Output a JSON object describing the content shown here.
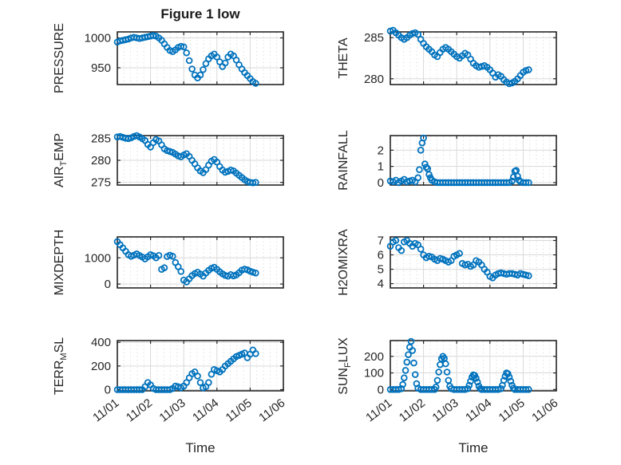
{
  "figure": {
    "title": "Figure 1 low",
    "xlabel": "Time"
  },
  "style": {
    "marker_color": "#0072BD",
    "axis_color": "#262626",
    "grid_color": "#d9d9d9",
    "text_color": "#262626",
    "title_color": "#1a1a1a",
    "background": "#ffffff"
  },
  "x_axis": {
    "tick_labels": [
      "11/01",
      "11/02",
      "11/03",
      "11/04",
      "11/05",
      "11/06"
    ],
    "tick_hours": [
      0,
      24,
      48,
      72,
      96,
      120
    ],
    "range_hours": [
      0,
      120
    ]
  },
  "chart_data": [
    {
      "id": "pressure",
      "type": "scatter",
      "row": 0,
      "col": 0,
      "ylabel_parts": [
        {
          "text": "PRESSURE",
          "sub": false
        }
      ],
      "yticks": [
        950,
        1000
      ],
      "ylim": [
        922,
        1010
      ],
      "yminor": 10,
      "x_hours": [
        0,
        2,
        4,
        6,
        8,
        10,
        12,
        14,
        16,
        18,
        20,
        22,
        24,
        26,
        28,
        30,
        32,
        34,
        36,
        38,
        40,
        42,
        44,
        46,
        48,
        50,
        52,
        54,
        56,
        58,
        60,
        62,
        64,
        66,
        68,
        70,
        72,
        74,
        76,
        78,
        80,
        82,
        84,
        86,
        88,
        90,
        92,
        94,
        96,
        98,
        100
      ],
      "values": [
        993,
        995,
        996,
        997,
        998,
        1000,
        1001,
        1000,
        999,
        1000,
        1001,
        1002,
        1003,
        1004,
        1003,
        1000,
        996,
        990,
        984,
        979,
        977,
        980,
        984,
        986,
        985,
        975,
        962,
        948,
        938,
        933,
        938,
        947,
        957,
        965,
        970,
        973,
        968,
        960,
        952,
        958,
        968,
        973,
        970,
        963,
        955,
        948,
        942,
        937,
        932,
        927,
        924
      ]
    },
    {
      "id": "theta",
      "type": "scatter",
      "row": 0,
      "col": 1,
      "ylabel_parts": [
        {
          "text": "THETA",
          "sub": false
        }
      ],
      "yticks": [
        280,
        285
      ],
      "ylim": [
        279.3,
        285.7
      ],
      "yminor": 1,
      "x_hours": [
        0,
        2,
        4,
        6,
        8,
        10,
        12,
        14,
        16,
        18,
        20,
        22,
        24,
        26,
        28,
        30,
        32,
        34,
        36,
        38,
        40,
        42,
        44,
        46,
        48,
        50,
        52,
        54,
        56,
        58,
        60,
        62,
        64,
        66,
        68,
        70,
        72,
        74,
        76,
        78,
        80,
        82,
        84,
        86,
        88,
        90,
        92,
        94,
        96,
        98,
        100
      ],
      "values": [
        285.8,
        285.9,
        285.6,
        285.3,
        285.0,
        284.8,
        285.0,
        285.3,
        285.5,
        285.6,
        285.4,
        284.8,
        284.3,
        283.9,
        283.6,
        283.3,
        282.9,
        282.7,
        283.2,
        283.6,
        283.8,
        283.6,
        283.3,
        283.0,
        282.7,
        282.5,
        282.8,
        283.1,
        282.9,
        282.4,
        281.9,
        281.6,
        281.4,
        281.5,
        281.6,
        281.4,
        281.1,
        280.7,
        280.2,
        280.5,
        280.3,
        279.9,
        279.6,
        279.4,
        279.5,
        279.7,
        280.0,
        280.4,
        280.8,
        281.0,
        281.1
      ]
    },
    {
      "id": "air_temp",
      "type": "scatter",
      "row": 1,
      "col": 0,
      "ylabel_parts": [
        {
          "text": "AIR",
          "sub": false
        },
        {
          "text": "T",
          "sub": true
        },
        {
          "text": "EMP",
          "sub": false
        }
      ],
      "yticks": [
        275,
        280,
        285
      ],
      "ylim": [
        274.4,
        285.6
      ],
      "yminor": 1,
      "x_hours": [
        0,
        2,
        4,
        6,
        8,
        10,
        12,
        14,
        16,
        18,
        20,
        22,
        24,
        26,
        28,
        30,
        32,
        34,
        36,
        38,
        40,
        42,
        44,
        46,
        48,
        50,
        52,
        54,
        56,
        58,
        60,
        62,
        64,
        66,
        68,
        70,
        72,
        74,
        76,
        78,
        80,
        82,
        84,
        86,
        88,
        90,
        92,
        94,
        96,
        98,
        100
      ],
      "values": [
        285.3,
        285.4,
        285.2,
        285.0,
        284.9,
        285.1,
        285.4,
        285.6,
        285.3,
        284.9,
        284.5,
        283.6,
        283.0,
        284.0,
        284.7,
        284.4,
        283.5,
        282.6,
        282.2,
        282.0,
        281.8,
        281.4,
        281.0,
        280.8,
        281.2,
        281.5,
        280.9,
        280.0,
        279.2,
        278.3,
        277.6,
        277.2,
        277.9,
        278.9,
        279.8,
        280.2,
        279.6,
        278.6,
        277.8,
        277.3,
        277.5,
        277.8,
        277.6,
        277.1,
        276.6,
        276.1,
        275.6,
        275.2,
        275.0,
        274.9,
        275.0
      ]
    },
    {
      "id": "rainfall",
      "type": "scatter",
      "row": 1,
      "col": 1,
      "ylabel_parts": [
        {
          "text": "RAINFALL",
          "sub": false
        }
      ],
      "yticks": [
        0,
        1,
        2
      ],
      "ylim": [
        -0.15,
        2.9
      ],
      "yminor": 0.25,
      "x_hours": [
        0,
        2,
        4,
        6,
        8,
        10,
        12,
        14,
        16,
        18,
        20,
        21,
        22,
        23,
        24,
        25,
        26,
        27,
        28,
        29,
        30,
        32,
        34,
        36,
        38,
        40,
        42,
        44,
        46,
        48,
        50,
        52,
        54,
        56,
        58,
        60,
        62,
        64,
        66,
        68,
        70,
        72,
        74,
        76,
        78,
        80,
        82,
        84,
        86,
        88,
        89,
        90,
        91,
        92,
        93,
        94,
        96,
        98,
        100
      ],
      "values": [
        0.1,
        0.05,
        0.15,
        0,
        0.1,
        0.2,
        0.05,
        0.1,
        0.15,
        0.05,
        0.3,
        0.8,
        2.0,
        2.45,
        2.75,
        1.15,
        0.95,
        0.85,
        0.5,
        0.3,
        0.15,
        0.05,
        0,
        0,
        0,
        0,
        0,
        0,
        0,
        0,
        0,
        0,
        0,
        0,
        0,
        0,
        0,
        0,
        0,
        0,
        0,
        0,
        0,
        0,
        0,
        0,
        0,
        0,
        0,
        0.1,
        0.35,
        0.7,
        0.75,
        0.4,
        0.15,
        0.05,
        0,
        0,
        0
      ]
    },
    {
      "id": "mixdepth",
      "type": "scatter",
      "row": 2,
      "col": 0,
      "ylabel_parts": [
        {
          "text": "MIXDEPTH",
          "sub": false
        }
      ],
      "yticks": [
        0,
        1000
      ],
      "ylim": [
        -150,
        1800
      ],
      "yminor": 200,
      "x_hours": [
        0,
        2,
        4,
        6,
        8,
        10,
        12,
        14,
        16,
        18,
        20,
        22,
        24,
        26,
        28,
        30,
        32,
        34,
        36,
        38,
        40,
        42,
        44,
        46,
        48,
        50,
        52,
        54,
        56,
        58,
        60,
        62,
        64,
        66,
        68,
        70,
        72,
        74,
        76,
        78,
        80,
        82,
        84,
        86,
        88,
        90,
        92,
        94,
        96,
        98,
        100
      ],
      "values": [
        1620,
        1500,
        1380,
        1250,
        1120,
        1060,
        1100,
        1150,
        1090,
        1030,
        960,
        1040,
        1120,
        1080,
        1000,
        1090,
        560,
        620,
        1050,
        1100,
        1060,
        820,
        660,
        480,
        150,
        80,
        200,
        320,
        400,
        450,
        380,
        300,
        420,
        520,
        600,
        640,
        560,
        470,
        390,
        330,
        300,
        360,
        310,
        350,
        430,
        530,
        570,
        540,
        490,
        450,
        420
      ]
    },
    {
      "id": "h2omixra",
      "type": "scatter",
      "row": 2,
      "col": 1,
      "ylabel_parts": [
        {
          "text": "H2OMIXRA",
          "sub": false
        }
      ],
      "yticks": [
        4,
        5,
        6,
        7
      ],
      "ylim": [
        3.7,
        7.25
      ],
      "yminor": 0.25,
      "x_hours": [
        0,
        2,
        4,
        6,
        8,
        10,
        12,
        14,
        16,
        18,
        20,
        22,
        24,
        26,
        28,
        30,
        32,
        34,
        36,
        38,
        40,
        42,
        44,
        46,
        48,
        50,
        52,
        54,
        56,
        58,
        60,
        62,
        64,
        66,
        68,
        70,
        72,
        74,
        76,
        78,
        80,
        82,
        84,
        86,
        88,
        90,
        92,
        94,
        96,
        98,
        100
      ],
      "values": [
        6.6,
        6.9,
        7.0,
        6.5,
        6.3,
        6.9,
        7.0,
        6.8,
        6.6,
        6.8,
        6.7,
        6.4,
        6.0,
        5.8,
        5.9,
        5.85,
        5.7,
        5.6,
        5.75,
        5.7,
        5.6,
        5.5,
        5.6,
        5.9,
        6.0,
        6.1,
        5.4,
        5.3,
        5.35,
        5.2,
        5.3,
        5.6,
        5.5,
        5.3,
        5.0,
        4.8,
        4.5,
        4.4,
        4.6,
        4.7,
        4.75,
        4.7,
        4.65,
        4.7,
        4.7,
        4.65,
        4.6,
        4.7,
        4.65,
        4.6,
        4.55
      ]
    },
    {
      "id": "terr_msl",
      "type": "scatter",
      "row": 3,
      "col": 0,
      "ylabel_parts": [
        {
          "text": "TERR",
          "sub": false
        },
        {
          "text": "M",
          "sub": true
        },
        {
          "text": "SL",
          "sub": false
        }
      ],
      "yticks": [
        0,
        200,
        400
      ],
      "ylim": [
        -10,
        415
      ],
      "yminor": 50,
      "x_hours": [
        0,
        2,
        4,
        6,
        8,
        10,
        12,
        14,
        16,
        18,
        20,
        22,
        24,
        26,
        28,
        30,
        32,
        34,
        36,
        38,
        40,
        42,
        44,
        46,
        48,
        50,
        52,
        54,
        56,
        58,
        60,
        62,
        64,
        66,
        68,
        70,
        72,
        74,
        76,
        78,
        80,
        82,
        84,
        86,
        88,
        90,
        92,
        94,
        96,
        98,
        100
      ],
      "values": [
        0,
        0,
        0,
        0,
        0,
        0,
        0,
        0,
        0,
        0,
        25,
        60,
        40,
        10,
        0,
        0,
        0,
        0,
        0,
        0,
        10,
        30,
        25,
        15,
        30,
        60,
        100,
        135,
        150,
        115,
        60,
        15,
        25,
        60,
        130,
        170,
        160,
        150,
        170,
        200,
        220,
        240,
        260,
        280,
        290,
        300,
        310,
        270,
        300,
        335,
        305
      ]
    },
    {
      "id": "sun_flux",
      "type": "scatter",
      "row": 3,
      "col": 1,
      "ylabel_parts": [
        {
          "text": "SUN",
          "sub": false
        },
        {
          "text": "F",
          "sub": true
        },
        {
          "text": "LUX",
          "sub": false
        }
      ],
      "yticks": [
        0,
        100,
        200
      ],
      "ylim": [
        -8,
        295
      ],
      "yminor": 25,
      "x_hours": [
        0,
        2,
        4,
        6,
        8,
        9,
        10,
        11,
        12,
        13,
        14,
        15,
        16,
        17,
        18,
        19,
        20,
        22,
        24,
        26,
        28,
        30,
        32,
        33,
        34,
        35,
        36,
        37,
        38,
        39,
        40,
        41,
        42,
        43,
        44,
        46,
        48,
        50,
        52,
        54,
        56,
        57,
        58,
        59,
        60,
        61,
        62,
        63,
        64,
        65,
        66,
        68,
        70,
        72,
        74,
        76,
        78,
        80,
        81,
        82,
        83,
        84,
        85,
        86,
        87,
        88,
        89,
        90,
        92,
        94,
        96,
        98,
        100
      ],
      "values": [
        0,
        0,
        0,
        0,
        5,
        30,
        70,
        115,
        165,
        210,
        255,
        290,
        235,
        160,
        90,
        35,
        8,
        0,
        0,
        0,
        0,
        0,
        0,
        15,
        55,
        105,
        150,
        185,
        200,
        188,
        155,
        105,
        55,
        20,
        5,
        0,
        0,
        0,
        0,
        0,
        5,
        25,
        50,
        75,
        88,
        85,
        68,
        45,
        20,
        5,
        0,
        0,
        0,
        0,
        0,
        0,
        0,
        5,
        25,
        55,
        80,
        100,
        95,
        75,
        50,
        25,
        8,
        0,
        0,
        0,
        0,
        0,
        0
      ]
    }
  ]
}
